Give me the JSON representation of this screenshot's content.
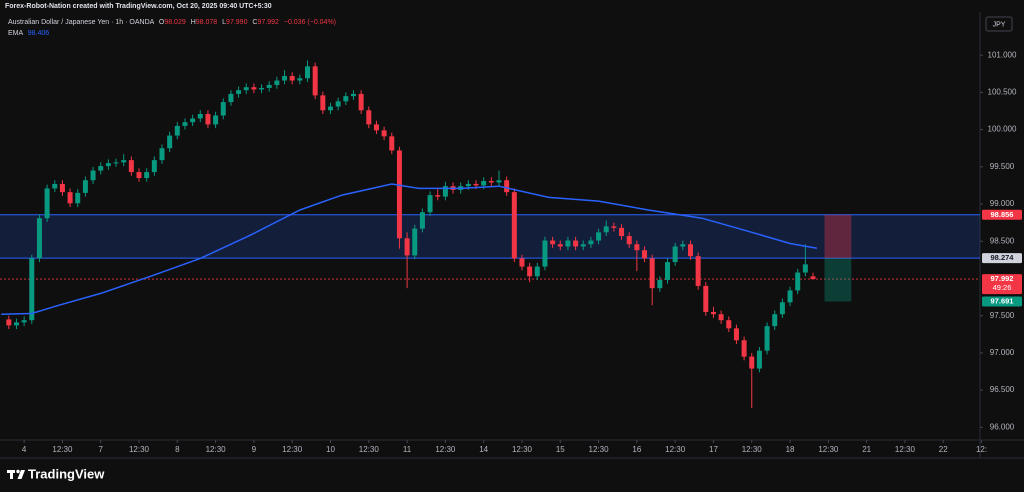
{
  "header": {
    "attribution": "Forex-Robot-Nation created with TradingView.com, Oct 20, 2025 09:40 UTC+5:30"
  },
  "chart_data": {
    "type": "candlestick",
    "title": "Australian Dollar / Japanese Yen · 1h · OANDA",
    "ohlc_prefixes": [
      "O",
      "H",
      "L",
      "C"
    ],
    "last_candle_labels": [
      "98.029",
      "98.078",
      "97.990",
      "97.992"
    ],
    "change": {
      "value": -0.036,
      "label": "−0.036 (−0.04%)"
    },
    "currency": "JPY",
    "up_color": "#089981",
    "down_color": "#f23645",
    "x": [
      -0.4,
      -0.2,
      0,
      0.2,
      0.4,
      0.6,
      0.8,
      1,
      1.2,
      1.4,
      1.6,
      1.8,
      2,
      2.2,
      2.4,
      2.6,
      2.8,
      3,
      3.2,
      3.4,
      3.6,
      3.8,
      4,
      4.2,
      4.4,
      4.6,
      4.8,
      5,
      5.2,
      5.4,
      5.6,
      5.8,
      6,
      6.2,
      6.4,
      6.6,
      6.8,
      7,
      7.2,
      7.4,
      7.6,
      7.8,
      8,
      8.2,
      8.4,
      8.6,
      8.8,
      9,
      9.2,
      9.4,
      9.6,
      9.8,
      10,
      10.2,
      10.4,
      10.6,
      10.8,
      11,
      11.2,
      11.4,
      11.6,
      11.8,
      12,
      12.2,
      12.4,
      12.6,
      12.8,
      13,
      13.2,
      13.4,
      13.6,
      13.8,
      14,
      14.2,
      14.4,
      14.6,
      14.8,
      15,
      15.2,
      15.4,
      15.6,
      15.8,
      16,
      16.2,
      16.4,
      16.6,
      16.8,
      17,
      17.2,
      17.4,
      17.6,
      17.8,
      18,
      18.2,
      18.4,
      18.6,
      18.8,
      19,
      19.2,
      19.4,
      19.6,
      19.8,
      20,
      20.2,
      20.4,
      20.6
    ],
    "candles": [
      [
        97.45,
        97.5,
        97.32,
        97.37
      ],
      [
        97.37,
        97.46,
        97.32,
        97.41
      ],
      [
        97.41,
        97.49,
        97.36,
        97.44
      ],
      [
        97.44,
        98.32,
        97.39,
        98.27
      ],
      [
        98.27,
        98.86,
        98.22,
        98.81
      ],
      [
        98.81,
        99.26,
        98.76,
        99.21
      ],
      [
        99.21,
        99.32,
        99.16,
        99.27
      ],
      [
        99.27,
        99.32,
        99.11,
        99.16
      ],
      [
        99.16,
        99.21,
        98.96,
        99.01
      ],
      [
        99.01,
        99.2,
        98.96,
        99.15
      ],
      [
        99.15,
        99.37,
        99.1,
        99.32
      ],
      [
        99.32,
        99.5,
        99.27,
        99.45
      ],
      [
        99.45,
        99.56,
        99.4,
        99.51
      ],
      [
        99.51,
        99.6,
        99.46,
        99.55
      ],
      [
        99.55,
        99.61,
        99.5,
        99.56
      ],
      [
        99.56,
        99.67,
        99.51,
        99.59
      ],
      [
        99.59,
        99.64,
        99.38,
        99.43
      ],
      [
        99.43,
        99.48,
        99.3,
        99.35
      ],
      [
        99.35,
        99.48,
        99.3,
        99.43
      ],
      [
        99.43,
        99.64,
        99.38,
        99.59
      ],
      [
        99.59,
        99.8,
        99.54,
        99.75
      ],
      [
        99.75,
        99.97,
        99.7,
        99.92
      ],
      [
        99.92,
        100.1,
        99.87,
        100.05
      ],
      [
        100.05,
        100.15,
        100.0,
        100.1
      ],
      [
        100.1,
        100.2,
        100.05,
        100.15
      ],
      [
        100.15,
        100.26,
        100.1,
        100.21
      ],
      [
        100.21,
        100.26,
        100.02,
        100.07
      ],
      [
        100.07,
        100.24,
        100.02,
        100.19
      ],
      [
        100.19,
        100.42,
        100.14,
        100.37
      ],
      [
        100.37,
        100.53,
        100.32,
        100.48
      ],
      [
        100.48,
        100.58,
        100.43,
        100.53
      ],
      [
        100.53,
        100.62,
        100.48,
        100.57
      ],
      [
        100.57,
        100.62,
        100.49,
        100.54
      ],
      [
        100.54,
        100.61,
        100.49,
        100.56
      ],
      [
        100.56,
        100.65,
        100.51,
        100.6
      ],
      [
        100.6,
        100.71,
        100.55,
        100.66
      ],
      [
        100.66,
        100.8,
        100.61,
        100.72
      ],
      [
        100.72,
        100.77,
        100.61,
        100.66
      ],
      [
        100.66,
        100.74,
        100.61,
        100.69
      ],
      [
        100.69,
        100.93,
        100.64,
        100.85
      ],
      [
        100.85,
        100.9,
        100.41,
        100.46
      ],
      [
        100.46,
        100.51,
        100.21,
        100.26
      ],
      [
        100.26,
        100.36,
        100.21,
        100.31
      ],
      [
        100.31,
        100.43,
        100.26,
        100.38
      ],
      [
        100.38,
        100.5,
        100.33,
        100.45
      ],
      [
        100.45,
        100.53,
        100.4,
        100.48
      ],
      [
        100.48,
        100.53,
        100.21,
        100.26
      ],
      [
        100.26,
        100.31,
        100.02,
        100.07
      ],
      [
        100.07,
        100.12,
        99.94,
        99.99
      ],
      [
        99.99,
        100.04,
        99.86,
        99.91
      ],
      [
        99.91,
        99.96,
        99.67,
        99.72
      ],
      [
        99.72,
        99.77,
        98.4,
        98.54
      ],
      [
        98.54,
        98.62,
        97.87,
        98.31
      ],
      [
        98.31,
        98.72,
        98.26,
        98.67
      ],
      [
        98.67,
        98.94,
        98.62,
        98.89
      ],
      [
        98.89,
        99.17,
        98.84,
        99.12
      ],
      [
        99.12,
        99.2,
        99.05,
        99.1
      ],
      [
        99.1,
        99.3,
        99.05,
        99.24
      ],
      [
        99.24,
        99.29,
        99.14,
        99.19
      ],
      [
        99.19,
        99.29,
        99.14,
        99.24
      ],
      [
        99.24,
        99.32,
        99.19,
        99.27
      ],
      [
        99.27,
        99.32,
        99.2,
        99.25
      ],
      [
        99.25,
        99.36,
        99.2,
        99.31
      ],
      [
        99.31,
        99.36,
        99.24,
        99.29
      ],
      [
        99.29,
        99.45,
        99.24,
        99.32
      ],
      [
        99.32,
        99.37,
        99.11,
        99.16
      ],
      [
        99.16,
        99.21,
        98.22,
        98.27
      ],
      [
        98.27,
        98.32,
        98.11,
        98.16
      ],
      [
        98.16,
        98.21,
        97.95,
        98.03
      ],
      [
        98.03,
        98.21,
        97.98,
        98.16
      ],
      [
        98.16,
        98.56,
        98.11,
        98.51
      ],
      [
        98.51,
        98.56,
        98.41,
        98.46
      ],
      [
        98.46,
        98.51,
        98.38,
        98.43
      ],
      [
        98.43,
        98.56,
        98.38,
        98.51
      ],
      [
        98.51,
        98.56,
        98.38,
        98.43
      ],
      [
        98.43,
        98.51,
        98.38,
        98.46
      ],
      [
        98.46,
        98.56,
        98.41,
        98.51
      ],
      [
        98.51,
        98.67,
        98.46,
        98.62
      ],
      [
        98.62,
        98.78,
        98.57,
        98.7
      ],
      [
        98.7,
        98.75,
        98.63,
        98.68
      ],
      [
        98.68,
        98.73,
        98.52,
        98.57
      ],
      [
        98.57,
        98.62,
        98.41,
        98.46
      ],
      [
        98.46,
        98.51,
        98.1,
        98.38
      ],
      [
        98.38,
        98.43,
        98.22,
        98.27
      ],
      [
        98.27,
        98.32,
        97.64,
        97.87
      ],
      [
        97.87,
        98.03,
        97.82,
        97.98
      ],
      [
        97.98,
        98.27,
        97.93,
        98.22
      ],
      [
        98.22,
        98.48,
        98.17,
        98.43
      ],
      [
        98.43,
        98.51,
        98.38,
        98.46
      ],
      [
        98.46,
        98.51,
        98.25,
        98.3
      ],
      [
        98.3,
        98.35,
        97.85,
        97.9
      ],
      [
        97.9,
        97.95,
        97.5,
        97.55
      ],
      [
        97.55,
        97.62,
        97.47,
        97.52
      ],
      [
        97.52,
        97.57,
        97.39,
        97.44
      ],
      [
        97.44,
        97.49,
        97.28,
        97.33
      ],
      [
        97.33,
        97.38,
        97.12,
        97.17
      ],
      [
        97.17,
        97.22,
        96.9,
        96.95
      ],
      [
        96.95,
        97.0,
        96.26,
        96.79
      ],
      [
        96.79,
        97.08,
        96.74,
        97.03
      ],
      [
        97.03,
        97.41,
        96.98,
        97.36
      ],
      [
        97.36,
        97.57,
        97.31,
        97.52
      ],
      [
        97.52,
        97.73,
        97.47,
        97.68
      ],
      [
        97.68,
        97.89,
        97.63,
        97.84
      ],
      [
        97.84,
        98.13,
        97.79,
        98.08
      ],
      [
        98.08,
        98.46,
        98.03,
        98.19
      ],
      [
        98.029,
        98.078,
        97.99,
        97.992
      ]
    ],
    "ema": {
      "name": "EMA",
      "color": "#2962ff",
      "x": [
        -0.6,
        0.2,
        0.9,
        2,
        3.3,
        4.6,
        5.9,
        7.2,
        8.3,
        9.6,
        10.3,
        11.4,
        12.4,
        13.7,
        15,
        16.3,
        17.7,
        19,
        20,
        20.7
      ],
      "values": [
        97.52,
        97.53,
        97.64,
        97.8,
        98.03,
        98.27,
        98.58,
        98.92,
        99.12,
        99.27,
        99.21,
        99.21,
        99.24,
        99.09,
        99.04,
        98.92,
        98.81,
        98.62,
        98.47,
        98.406
      ]
    },
    "zone": {
      "top": 98.856,
      "bottom": 98.274,
      "color": "#2962ff"
    },
    "position": {
      "x": [
        20.9,
        21.6
      ],
      "stop": 98.856,
      "entry": 98.274,
      "target": 97.691
    },
    "countdown": "49:26",
    "xlim": [
      -0.63,
      24.96
    ],
    "xticks": [
      {
        "value": 0,
        "label": "4"
      },
      {
        "value": 1,
        "label": "12:30"
      },
      {
        "value": 2,
        "label": "7"
      },
      {
        "value": 3,
        "label": "12:30"
      },
      {
        "value": 4,
        "label": "8"
      },
      {
        "value": 5,
        "label": "12:30"
      },
      {
        "value": 6,
        "label": "9"
      },
      {
        "value": 7,
        "label": "12:30"
      },
      {
        "value": 8,
        "label": "10"
      },
      {
        "value": 9,
        "label": "12:30"
      },
      {
        "value": 10,
        "label": "11"
      },
      {
        "value": 11,
        "label": "12:30"
      },
      {
        "value": 12,
        "label": "14"
      },
      {
        "value": 13,
        "label": "12:30"
      },
      {
        "value": 14,
        "label": "15"
      },
      {
        "value": 15,
        "label": "12:30"
      },
      {
        "value": 16,
        "label": "16"
      },
      {
        "value": 17,
        "label": "12:30"
      },
      {
        "value": 18,
        "label": "17"
      },
      {
        "value": 19,
        "label": "12:30"
      },
      {
        "value": 20,
        "label": "18"
      },
      {
        "value": 21,
        "label": "12:30"
      },
      {
        "value": 22,
        "label": "21"
      },
      {
        "value": 23,
        "label": "12:30"
      },
      {
        "value": 24,
        "label": "22"
      },
      {
        "value": 25,
        "label": "12:"
      }
    ],
    "ylim": [
      95.83,
      101.54
    ],
    "yticks": [
      {
        "value": 96,
        "label": "96.000"
      },
      {
        "value": 96.5,
        "label": "96.500"
      },
      {
        "value": 97,
        "label": "97.000"
      },
      {
        "value": 97.5,
        "label": "97.500"
      },
      {
        "value": 98.5,
        "label": "98.500"
      },
      {
        "value": 99,
        "label": "99.000"
      },
      {
        "value": 99.5,
        "label": "99.500"
      },
      {
        "value": 100,
        "label": "100.000"
      },
      {
        "value": 100.5,
        "label": "100.500"
      },
      {
        "value": 101,
        "label": "101.000"
      }
    ],
    "grid": false
  },
  "footer": {
    "brand": "TradingView"
  }
}
